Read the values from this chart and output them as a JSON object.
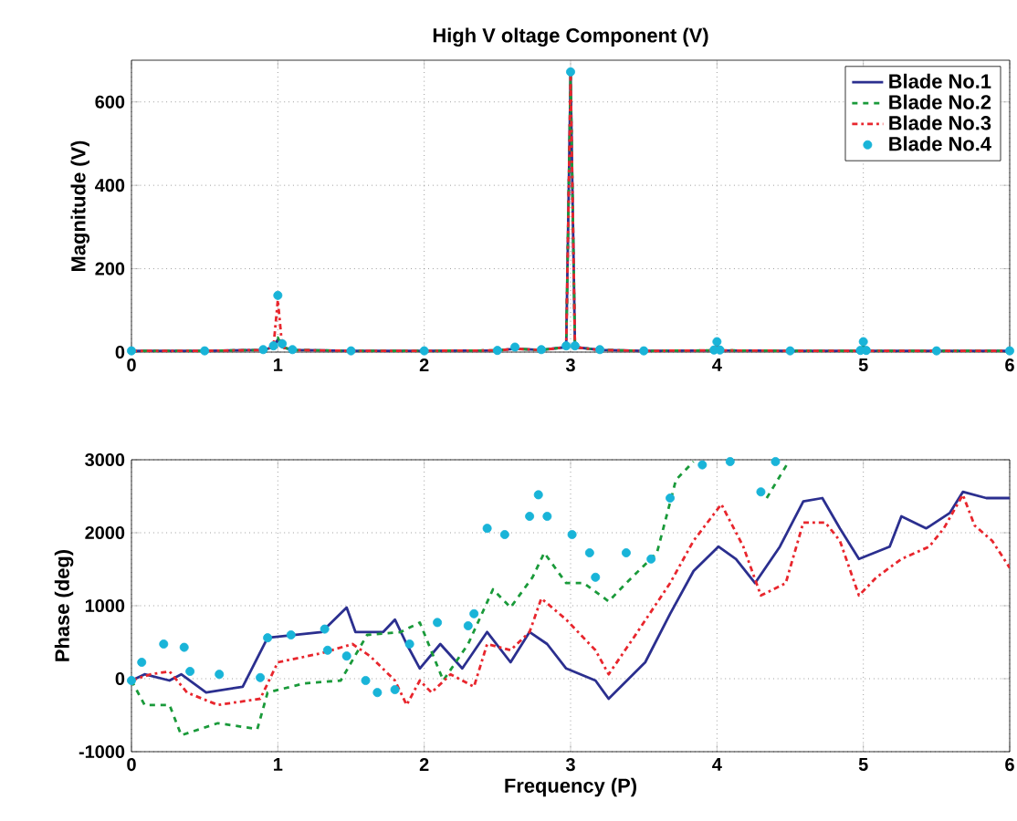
{
  "chart_data": [
    {
      "type": "line",
      "title": "High V oltage Component (V)",
      "ylabel": "Magnitude (V)",
      "xlim": [
        0,
        6
      ],
      "ylim": [
        0,
        700
      ],
      "xticks": [
        0,
        1,
        2,
        3,
        4,
        5,
        6
      ],
      "yticks": [
        0,
        200,
        400,
        600
      ],
      "grid": true,
      "legend": "top right",
      "x": [
        0,
        0.5,
        0.9,
        0.97,
        1,
        1.03,
        1.1,
        1.5,
        2,
        2.5,
        2.62,
        2.8,
        2.97,
        3,
        3.03,
        3.2,
        3.5,
        3.98,
        4,
        4.02,
        4.5,
        4.98,
        5,
        5.02,
        5.5,
        6
      ],
      "series": [
        {
          "name": "Blade No.1",
          "color": "#2b2f8f",
          "line_style": "solid",
          "values": [
            3,
            3,
            5,
            12,
            30,
            12,
            5,
            3,
            3,
            4,
            8,
            5,
            12,
            665,
            12,
            5,
            3,
            4,
            20,
            4,
            3,
            3,
            15,
            3,
            3,
            3
          ]
        },
        {
          "name": "Blade No.2",
          "color": "#1a9a3a",
          "line_style": "dashed",
          "values": [
            3,
            3,
            5,
            12,
            35,
            12,
            5,
            3,
            3,
            4,
            8,
            5,
            12,
            665,
            12,
            5,
            3,
            4,
            20,
            4,
            3,
            3,
            15,
            3,
            3,
            3
          ]
        },
        {
          "name": "Blade No.3",
          "color": "#e8262d",
          "line_style": "dashdot",
          "values": [
            3,
            3,
            5,
            12,
            125,
            12,
            5,
            3,
            3,
            4,
            8,
            5,
            12,
            665,
            12,
            5,
            3,
            4,
            20,
            4,
            3,
            3,
            15,
            3,
            3,
            3
          ]
        },
        {
          "name": "Blade No.4",
          "type": "scatter",
          "marker": "circle",
          "color": "#19b4d8",
          "values": [
            3,
            3,
            6,
            15,
            136,
            20,
            6,
            3,
            3,
            4,
            12,
            6,
            15,
            672,
            15,
            6,
            3,
            5,
            25,
            5,
            3,
            4,
            25,
            4,
            3,
            3
          ]
        }
      ]
    },
    {
      "type": "line",
      "xlabel": "Frequency (P)",
      "ylabel": "Phase (deg)",
      "xlim": [
        0,
        6
      ],
      "ylim": [
        -1000,
        3000
      ],
      "xticks": [
        0,
        1,
        2,
        3,
        4,
        5,
        6
      ],
      "yticks": [
        -1000,
        0,
        1000,
        2000,
        3000
      ],
      "grid": true,
      "series": [
        {
          "color": "#2b2f8f",
          "line_style": "solid",
          "x": [
            0,
            0.09,
            0.26,
            0.34,
            0.51,
            0.76,
            0.93,
            1.3,
            1.47,
            1.53,
            1.72,
            1.8,
            1.88,
            1.97,
            2.11,
            2.26,
            2.43,
            2.59,
            2.72,
            2.84,
            2.97,
            3.17,
            3.26,
            3.51,
            3.68,
            3.84,
            4.01,
            4.13,
            4.26,
            4.43,
            4.59,
            4.72,
            4.84,
            4.97,
            5.18,
            5.26,
            5.43,
            5.59,
            5.68,
            5.84,
            6
          ],
          "values": [
            -25,
            60,
            -25,
            60,
            -190,
            -110,
            560,
            640,
            975,
            640,
            640,
            810,
            475,
            140,
            475,
            140,
            640,
            225,
            640,
            475,
            140,
            -25,
            -275,
            225,
            890,
            1475,
            1810,
            1640,
            1310,
            1810,
            2430,
            2475,
            2060,
            1640,
            1810,
            2225,
            2060,
            2270,
            2560,
            2475,
            2475
          ]
        },
        {
          "color": "#1a9a3a",
          "line_style": "dashed",
          "x": [
            0,
            0.09,
            0.26,
            0.34,
            0.59,
            0.86,
            0.93,
            1.18,
            1.43,
            1.61,
            1.84,
            1.97,
            2.13,
            2.3,
            2.47,
            2.59,
            2.74,
            2.82,
            2.97,
            3.09,
            3.26,
            3.38,
            3.59,
            3.72,
            3.84,
            4.1,
            4.34,
            4.49
          ],
          "values": [
            -25,
            -360,
            -360,
            -775,
            -610,
            -690,
            -190,
            -65,
            -25,
            600,
            640,
            770,
            -25,
            475,
            1225,
            975,
            1390,
            1725,
            1310,
            1310,
            1060,
            1310,
            1725,
            2725,
            2975,
            null,
            2475,
            2975
          ]
        },
        {
          "color": "#e8262d",
          "line_style": "dashdot",
          "x": [
            0,
            0.13,
            0.26,
            0.38,
            0.59,
            0.88,
            1.0,
            1.3,
            1.51,
            1.63,
            1.8,
            1.88,
            1.97,
            2.05,
            2.18,
            2.34,
            2.43,
            2.59,
            2.72,
            2.8,
            2.97,
            3.17,
            3.26,
            3.43,
            3.68,
            3.84,
            4.03,
            4.18,
            4.3,
            4.47,
            4.59,
            4.74,
            4.84,
            4.97,
            5.09,
            5.26,
            5.45,
            5.55,
            5.68,
            5.76,
            5.88,
            6
          ],
          "values": [
            -25,
            60,
            100,
            -190,
            -360,
            -275,
            225,
            350,
            475,
            310,
            -25,
            -360,
            -25,
            -190,
            60,
            -110,
            475,
            390,
            640,
            1100,
            810,
            390,
            60,
            560,
            1310,
            1890,
            2390,
            1810,
            1140,
            1310,
            2140,
            2140,
            1890,
            1140,
            1390,
            1640,
            1810,
            2060,
            2520,
            2100,
            1890,
            1520
          ]
        },
        {
          "type": "scatter",
          "marker": "circle",
          "color": "#19b4d8",
          "x": [
            0,
            0.07,
            0.22,
            0.36,
            0.4,
            0.6,
            0.88,
            0.93,
            1.09,
            1.32,
            1.34,
            1.47,
            1.6,
            1.68,
            1.8,
            1.9,
            2.09,
            2.3,
            2.34,
            2.43,
            2.55,
            2.72,
            2.78,
            2.84,
            3.01,
            3.13,
            3.17,
            3.38,
            3.55,
            3.68,
            3.9,
            4.09,
            4.3,
            4.4
          ],
          "values": [
            -25,
            225,
            475,
            430,
            100,
            60,
            15,
            560,
            600,
            680,
            390,
            310,
            -25,
            -190,
            -150,
            475,
            770,
            725,
            890,
            2060,
            1975,
            2225,
            2520,
            2225,
            1975,
            1725,
            1390,
            1725,
            1640,
            2475,
            2930,
            2975,
            2560,
            2975
          ]
        }
      ]
    }
  ]
}
